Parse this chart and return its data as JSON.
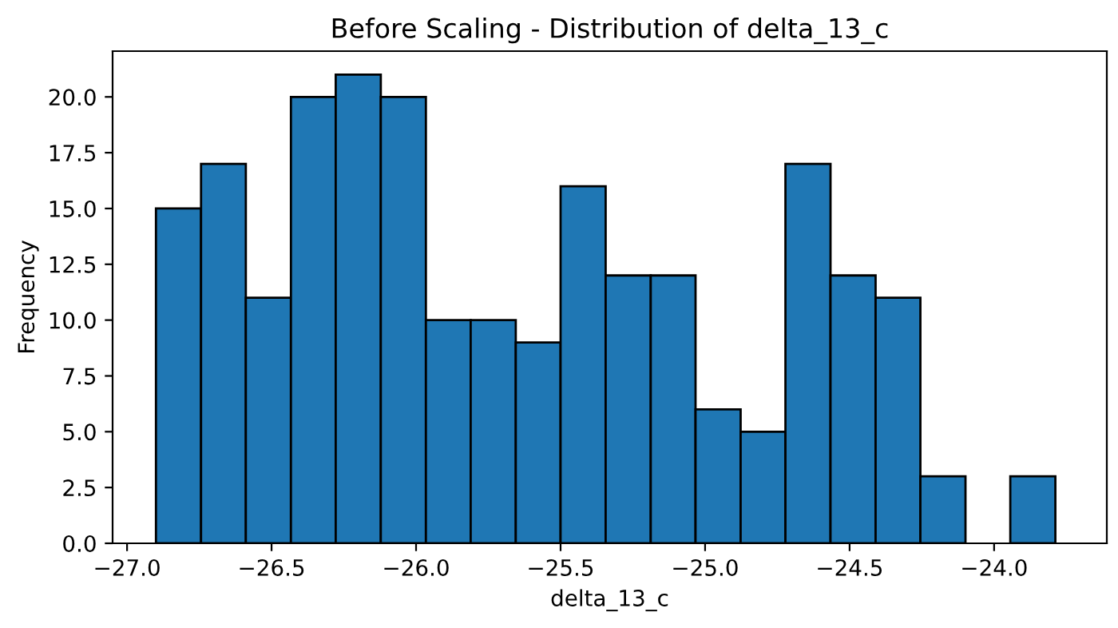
{
  "chart_data": {
    "type": "histogram",
    "title": "Before Scaling - Distribution of delta_13_c",
    "xlabel": "delta_13_c",
    "ylabel": "Frequency",
    "bins": [
      -26.9,
      -26.744,
      -26.589,
      -26.433,
      -26.278,
      -26.122,
      -25.966,
      -25.811,
      -25.655,
      -25.5,
      -25.344,
      -25.188,
      -25.033,
      -24.877,
      -24.722,
      -24.566,
      -24.41,
      -24.255,
      -24.099,
      -23.944,
      -23.788
    ],
    "values": [
      15,
      17,
      11,
      20,
      21,
      20,
      10,
      10,
      9,
      16,
      12,
      12,
      6,
      5,
      17,
      12,
      11,
      3,
      0,
      3
    ],
    "color": "#1f77b4",
    "xlim": [
      -27.05,
      -23.61
    ],
    "xticks": [
      {
        "value": -27,
        "label": "−27.0"
      },
      {
        "value": -26.5,
        "label": "−26.5"
      },
      {
        "value": -26,
        "label": "−26.0"
      },
      {
        "value": -25.5,
        "label": "−25.5"
      },
      {
        "value": -25,
        "label": "−25.0"
      },
      {
        "value": -24.5,
        "label": "−24.5"
      },
      {
        "value": -24,
        "label": "−24.0"
      }
    ],
    "ylim": [
      0,
      22.05
    ],
    "yticks": [
      {
        "value": 0,
        "label": "0.0"
      },
      {
        "value": 2.5,
        "label": "2.5"
      },
      {
        "value": 5,
        "label": "5.0"
      },
      {
        "value": 7.5,
        "label": "7.5"
      },
      {
        "value": 10,
        "label": "10.0"
      },
      {
        "value": 12.5,
        "label": "12.5"
      },
      {
        "value": 15,
        "label": "15.0"
      },
      {
        "value": 17.5,
        "label": "17.5"
      },
      {
        "value": 20,
        "label": "20.0"
      }
    ],
    "grid": false
  }
}
